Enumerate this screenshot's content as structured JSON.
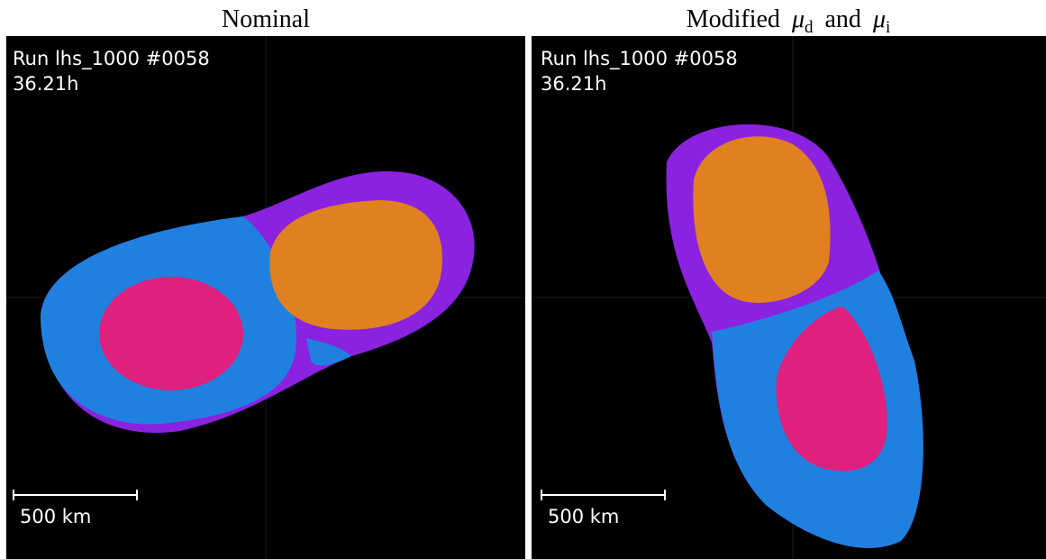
{
  "panels": [
    {
      "title": "Nominal",
      "run": "Run lhs_1000 #0058",
      "time": "36.21h",
      "scale_bar": "500 km"
    },
    {
      "title_parts": {
        "word": "Modified",
        "symbol_1": "μ",
        "sub_1": "d",
        "joiner": "and",
        "symbol_2": "μ",
        "sub_2": "i"
      },
      "run": "Run lhs_1000 #0058",
      "time": "36.21h",
      "scale_bar": "500 km"
    }
  ]
}
